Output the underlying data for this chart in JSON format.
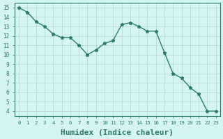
{
  "x": [
    0,
    1,
    2,
    3,
    4,
    5,
    6,
    7,
    8,
    9,
    10,
    11,
    12,
    13,
    14,
    15,
    16,
    17,
    18,
    19,
    20,
    21,
    22,
    23
  ],
  "y": [
    15.0,
    14.5,
    13.5,
    13.0,
    12.2,
    11.8,
    11.8,
    11.0,
    10.0,
    10.5,
    11.2,
    11.5,
    13.2,
    13.4,
    13.0,
    12.5,
    12.5,
    10.2,
    8.0,
    7.5,
    6.5,
    5.8,
    4.0,
    4.0
  ],
  "xlabel": "Humidex (Indice chaleur)",
  "xlim": [
    -0.5,
    23.5
  ],
  "ylim": [
    3.5,
    15.5
  ],
  "xticks": [
    0,
    1,
    2,
    3,
    4,
    5,
    6,
    7,
    8,
    9,
    10,
    11,
    12,
    13,
    14,
    15,
    16,
    17,
    18,
    19,
    20,
    21,
    22,
    23
  ],
  "yticks": [
    4,
    5,
    6,
    7,
    8,
    9,
    10,
    11,
    12,
    13,
    14,
    15
  ],
  "line_color": "#2d7a6e",
  "marker": "*",
  "bg_color": "#d4f5f0",
  "grid_color": "#b0d8d0",
  "tick_label_color": "#2d7a6e",
  "xlabel_color": "#2d7a6e",
  "xlabel_fontsize": 8
}
